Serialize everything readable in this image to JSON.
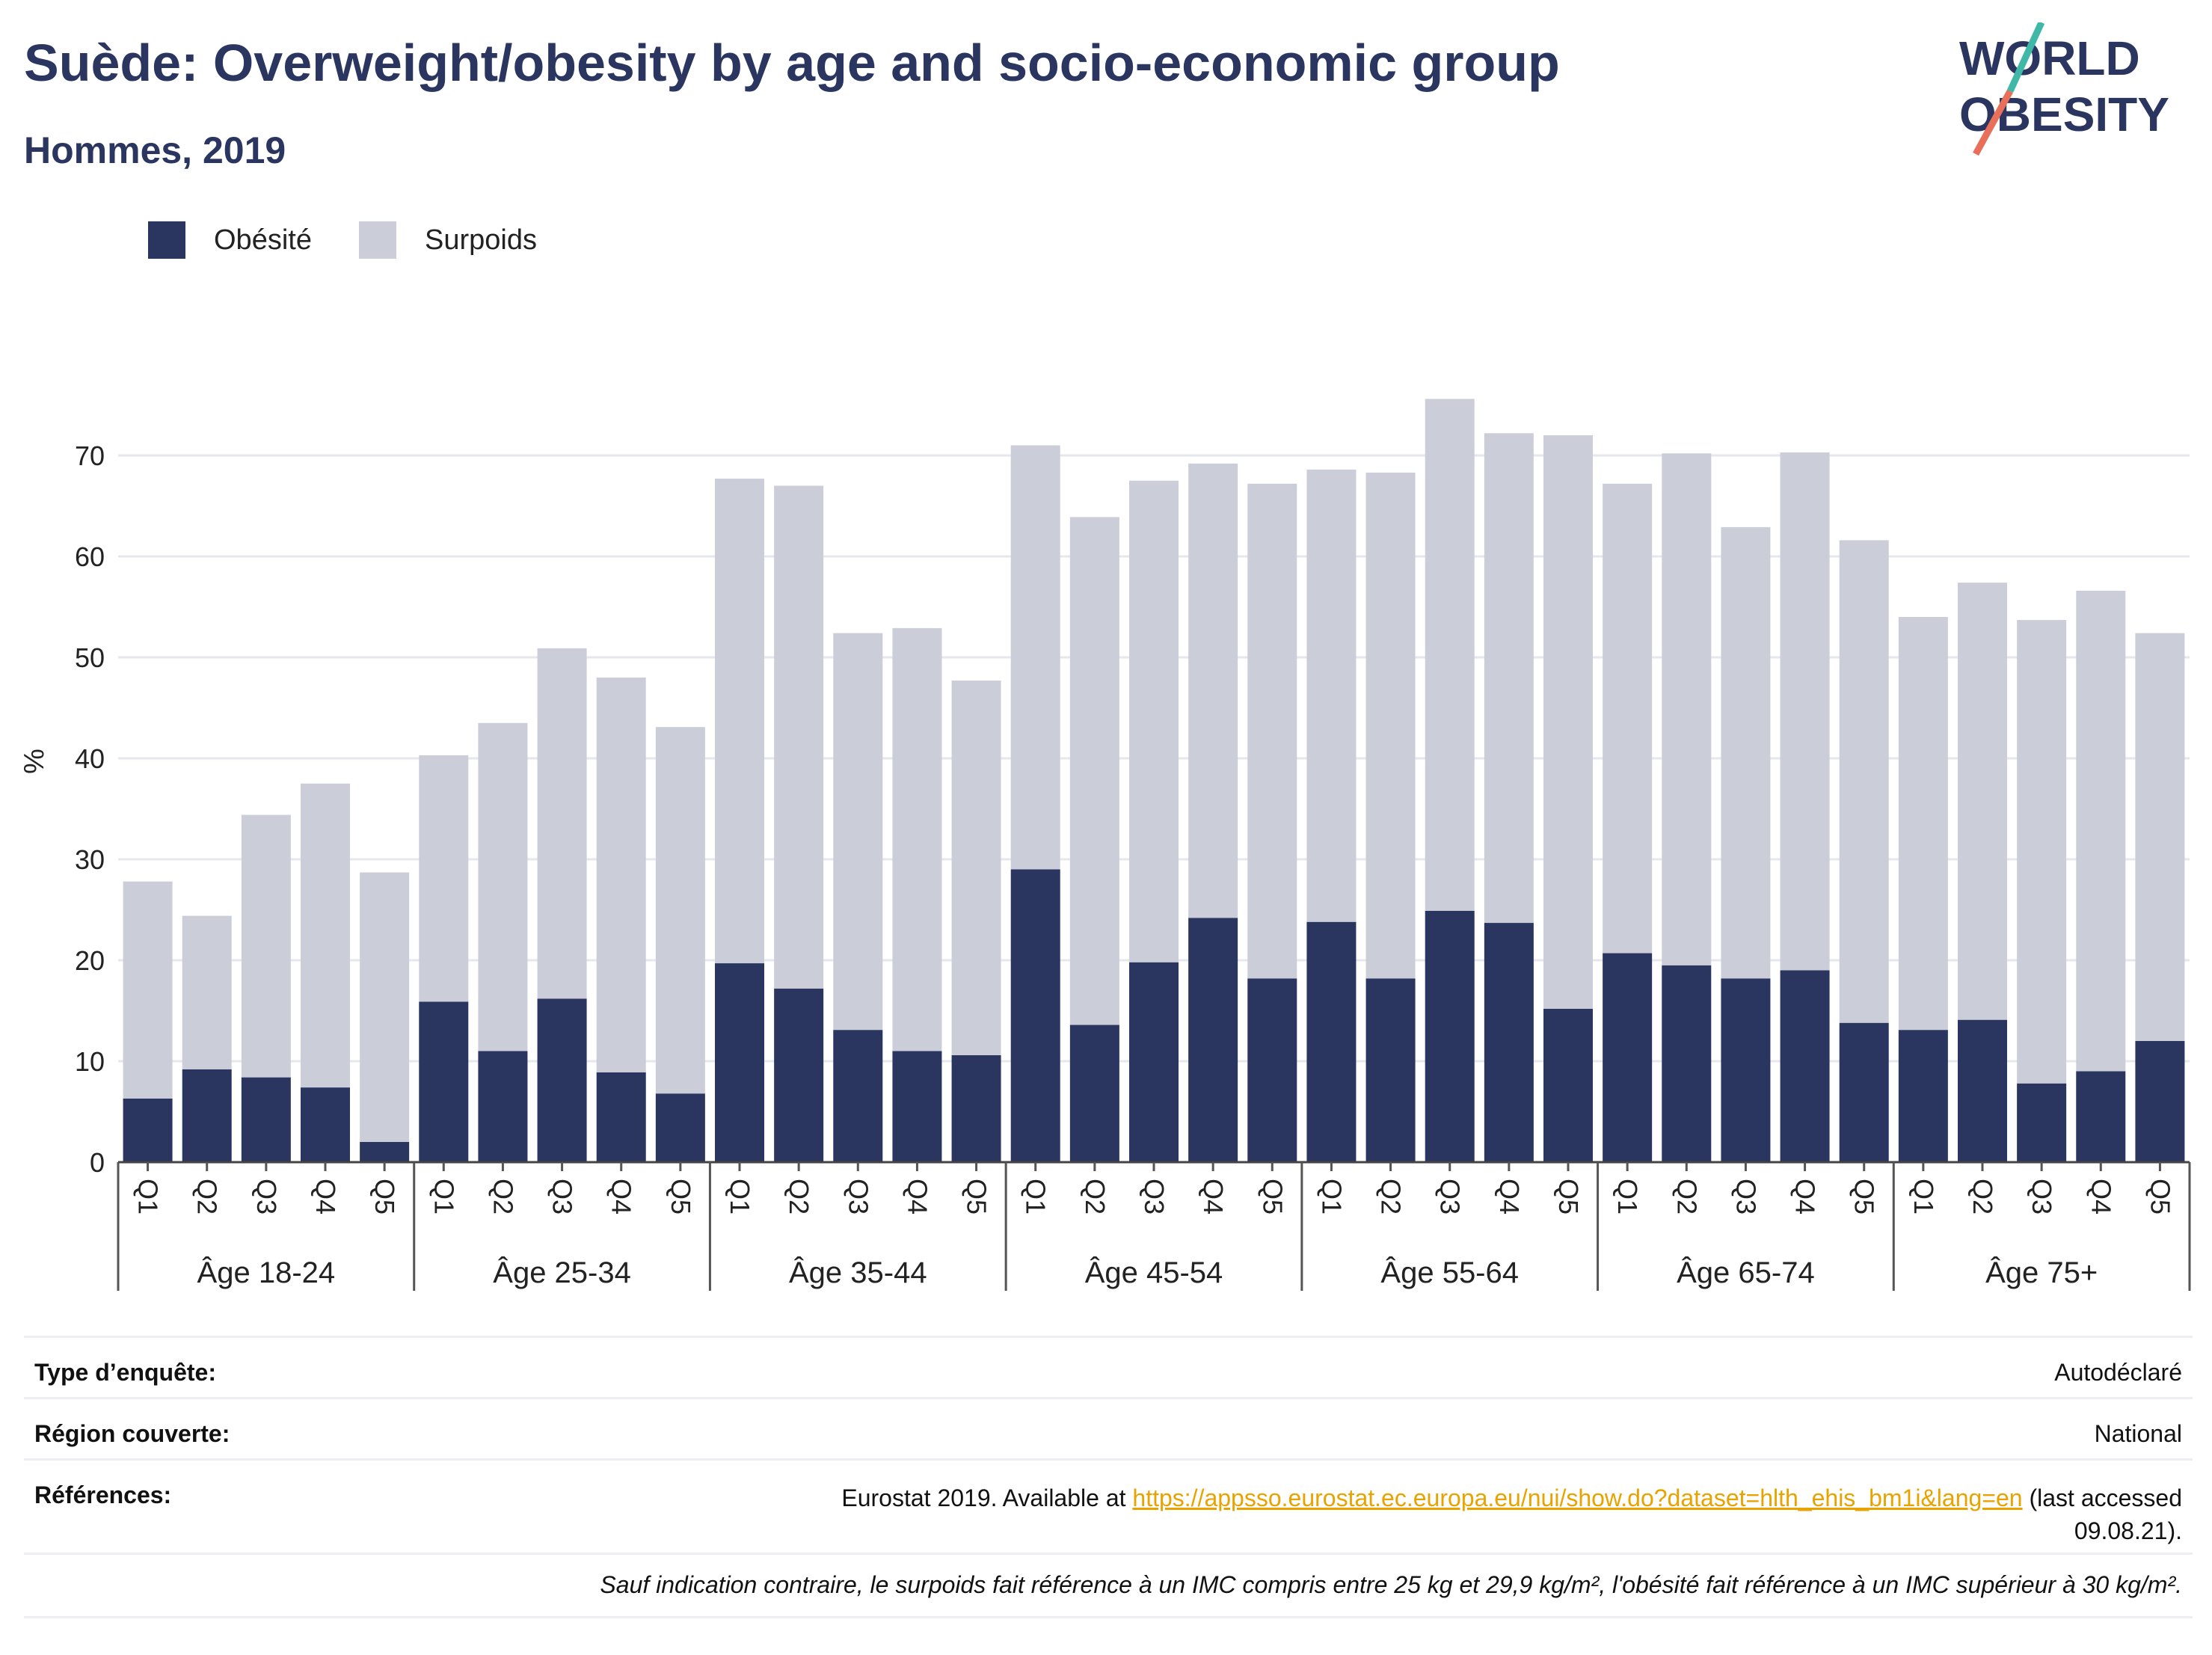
{
  "header": {
    "title": "Suède: Overweight/obesity by age and socio-economic group",
    "subtitle": "Hommes, 2019"
  },
  "logo": {
    "line1": "WORLD",
    "line2": "OBESITY",
    "colors": {
      "text": "#2a3560",
      "teal": "#3fb8a8",
      "coral": "#e8705a"
    }
  },
  "legend": [
    {
      "label": "Obésité",
      "color": "#2a3560"
    },
    {
      "label": "Surpoids",
      "color": "#cbcdd8"
    }
  ],
  "chart_data": {
    "type": "bar",
    "stacked": true,
    "ylabel": "%",
    "ylim": [
      0,
      80
    ],
    "yticks": [
      0,
      10,
      20,
      30,
      40,
      50,
      60,
      70
    ],
    "grid": true,
    "legend_position": "top-left",
    "groups": [
      "Âge 18-24",
      "Âge 25-34",
      "Âge 35-44",
      "Âge 45-54",
      "Âge 55-64",
      "Âge 65-74",
      "Âge 75+"
    ],
    "quintiles": [
      "Q1",
      "Q2",
      "Q3",
      "Q4",
      "Q5"
    ],
    "series": [
      {
        "name": "Obésité",
        "color": "#2a3560",
        "values": [
          6.3,
          9.2,
          8.4,
          7.4,
          2.0,
          15.9,
          11.0,
          16.2,
          8.9,
          6.8,
          19.7,
          17.2,
          13.1,
          11.0,
          10.6,
          29.0,
          13.6,
          19.8,
          24.2,
          18.2,
          23.8,
          18.2,
          24.9,
          23.7,
          15.2,
          20.7,
          19.5,
          18.2,
          19.0,
          13.8,
          13.1,
          14.1,
          7.8,
          9.0,
          12.0
        ]
      },
      {
        "name": "Surpoids",
        "color": "#cbcdd8",
        "values": [
          21.5,
          15.2,
          26.0,
          30.1,
          26.7,
          24.4,
          32.5,
          34.7,
          39.1,
          36.3,
          48.0,
          49.8,
          39.3,
          41.9,
          37.1,
          42.0,
          50.3,
          47.7,
          45.0,
          49.0,
          44.8,
          50.1,
          50.7,
          48.5,
          56.8,
          46.5,
          50.7,
          44.7,
          51.3,
          47.8,
          40.9,
          43.3,
          45.9,
          47.6,
          40.4
        ]
      }
    ]
  },
  "info": {
    "survey_key": "Type d’enquête:",
    "survey_val": "Autodéclaré",
    "region_key": "Région couverte:",
    "region_val": "National",
    "ref_key": "Références:",
    "ref_prefix": "Eurostat 2019. Available at",
    "ref_link": "https://appsso.eurostat.ec.europa.eu/nui/show.do?dataset=hlth_ehis_bm1i&lang=en",
    "ref_suffix": "(last accessed",
    "ref_date": "09.08.21).",
    "note": "Sauf indication contraire, le surpoids fait référence à un IMC compris entre 25 kg et 29,9 kg/m², l'obésité fait référence à un IMC supérieur à 30 kg/m²."
  }
}
